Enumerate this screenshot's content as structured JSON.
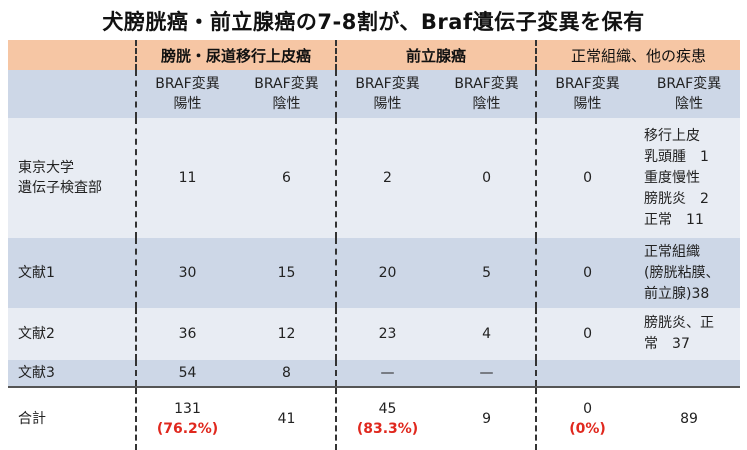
{
  "title": "犬膀胱癌・前立腺癌の7-8割が、Braf遺伝子変異を保有",
  "groups": [
    "膀胱・尿道移行上皮癌",
    "前立腺癌",
    "正常組織、他の疾患"
  ],
  "subheaders": {
    "positive_line1": "BRAF変異",
    "positive_line2": "陽性",
    "negative_line1": "BRAF変異",
    "negative_line2": "陰性"
  },
  "rows": [
    {
      "label_line1": "東京大学",
      "label_line2": "遺伝子検査部",
      "values": [
        "11",
        "6",
        "2",
        "0",
        "0"
      ],
      "note_lines": [
        "移行上皮",
        "乳頭腫　1",
        "重度慢性",
        "膀胱炎　2",
        "正常　11"
      ]
    },
    {
      "label": "文献1",
      "values": [
        "30",
        "15",
        "20",
        "5",
        "0"
      ],
      "note_lines": [
        "正常組織",
        "(膀胱粘膜、",
        "前立腺)38"
      ]
    },
    {
      "label": "文献2",
      "values": [
        "36",
        "12",
        "23",
        "4",
        "0"
      ],
      "note_lines": [
        "膀胱炎、正",
        "常　37"
      ]
    },
    {
      "label": "文献3",
      "values": [
        "54",
        "8",
        "—",
        "—",
        ""
      ],
      "note_lines": [
        ""
      ]
    }
  ],
  "total": {
    "label": "合計",
    "bladder_pos": "131",
    "bladder_pos_pct": "(76.2%)",
    "bladder_neg": "41",
    "prostate_pos": "45",
    "prostate_pos_pct": "(83.3%)",
    "prostate_neg": "9",
    "normal_pos": "0",
    "normal_pos_pct": "(0%)",
    "normal_neg": "89"
  },
  "colors": {
    "group_header": "#f6c6a4",
    "light_row": "#e8ecf3",
    "dark_row": "#cdd7e7",
    "highlight": "#e0281e"
  }
}
